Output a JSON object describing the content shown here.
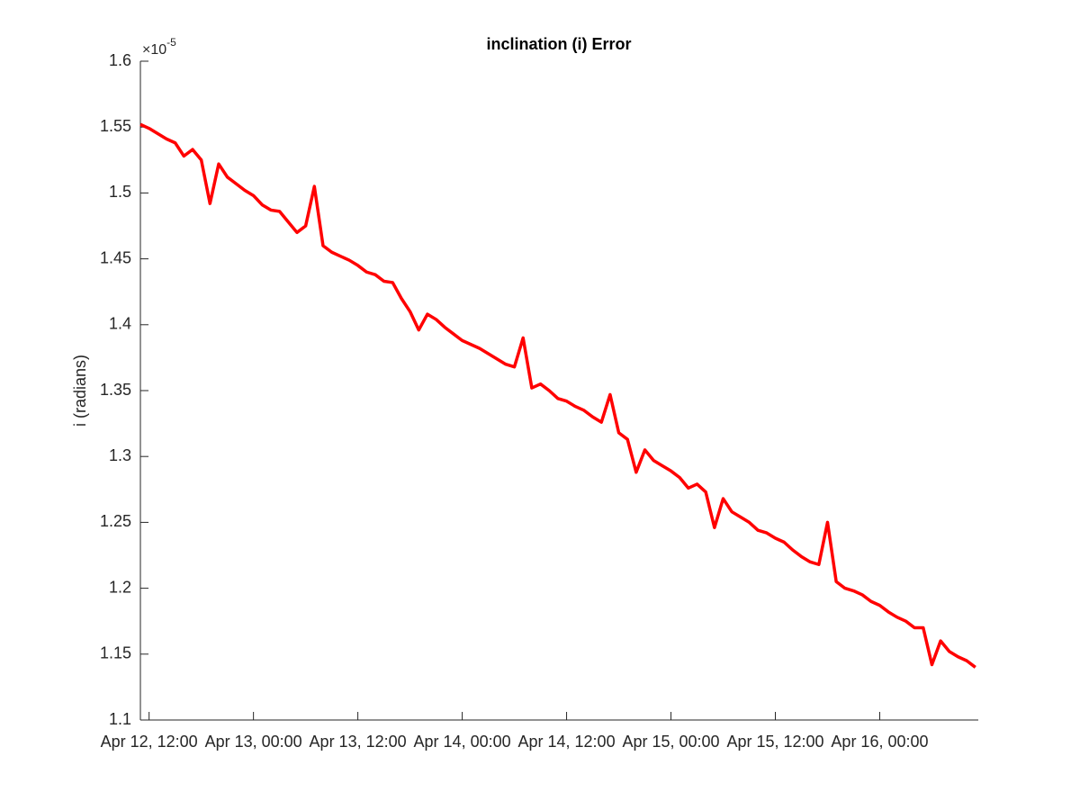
{
  "chart_data": {
    "type": "line",
    "title": "inclination (i) Error",
    "ylabel": "i (radians)",
    "y_exponent": {
      "base": "×10",
      "power": "-5"
    },
    "color": "#ff0000",
    "xlim": [
      "Apr 12, 11:00",
      "Apr 16, 11:20"
    ],
    "xticks": [
      "Apr 12, 12:00",
      "Apr 13, 00:00",
      "Apr 13, 12:00",
      "Apr 14, 00:00",
      "Apr 14, 12:00",
      "Apr 15, 00:00",
      "Apr 15, 12:00",
      "Apr 16, 00:00"
    ],
    "ylim": [
      1.1,
      1.6
    ],
    "yticks": [
      1.1,
      1.15,
      1.2,
      1.25,
      1.3,
      1.35,
      1.4,
      1.45,
      1.5,
      1.55,
      1.6
    ],
    "x": [
      "Apr 12, 11:00",
      "Apr 12, 12:00",
      "Apr 12, 13:00",
      "Apr 12, 14:00",
      "Apr 12, 15:00",
      "Apr 12, 16:00",
      "Apr 12, 17:00",
      "Apr 12, 18:00",
      "Apr 12, 19:00",
      "Apr 12, 20:00",
      "Apr 12, 21:00",
      "Apr 12, 22:00",
      "Apr 12, 23:00",
      "Apr 13, 00:00",
      "Apr 13, 01:00",
      "Apr 13, 02:00",
      "Apr 13, 03:00",
      "Apr 13, 04:00",
      "Apr 13, 05:00",
      "Apr 13, 06:00",
      "Apr 13, 07:00",
      "Apr 13, 08:00",
      "Apr 13, 09:00",
      "Apr 13, 10:00",
      "Apr 13, 11:00",
      "Apr 13, 12:00",
      "Apr 13, 13:00",
      "Apr 13, 14:00",
      "Apr 13, 15:00",
      "Apr 13, 16:00",
      "Apr 13, 17:00",
      "Apr 13, 18:00",
      "Apr 13, 19:00",
      "Apr 13, 20:00",
      "Apr 13, 21:00",
      "Apr 13, 22:00",
      "Apr 13, 23:00",
      "Apr 14, 00:00",
      "Apr 14, 01:00",
      "Apr 14, 02:00",
      "Apr 14, 03:00",
      "Apr 14, 04:00",
      "Apr 14, 05:00",
      "Apr 14, 06:00",
      "Apr 14, 07:00",
      "Apr 14, 08:00",
      "Apr 14, 09:00",
      "Apr 14, 10:00",
      "Apr 14, 11:00",
      "Apr 14, 12:00",
      "Apr 14, 13:00",
      "Apr 14, 14:00",
      "Apr 14, 15:00",
      "Apr 14, 16:00",
      "Apr 14, 17:00",
      "Apr 14, 18:00",
      "Apr 14, 19:00",
      "Apr 14, 20:00",
      "Apr 14, 21:00",
      "Apr 14, 22:00",
      "Apr 14, 23:00",
      "Apr 15, 00:00",
      "Apr 15, 01:00",
      "Apr 15, 02:00",
      "Apr 15, 03:00",
      "Apr 15, 04:00",
      "Apr 15, 05:00",
      "Apr 15, 06:00",
      "Apr 15, 07:00",
      "Apr 15, 08:00",
      "Apr 15, 09:00",
      "Apr 15, 10:00",
      "Apr 15, 11:00",
      "Apr 15, 12:00",
      "Apr 15, 13:00",
      "Apr 15, 14:00",
      "Apr 15, 15:00",
      "Apr 15, 16:00",
      "Apr 15, 17:00",
      "Apr 15, 18:00",
      "Apr 15, 19:00",
      "Apr 15, 20:00",
      "Apr 15, 21:00",
      "Apr 15, 22:00",
      "Apr 15, 23:00",
      "Apr 16, 00:00",
      "Apr 16, 01:00",
      "Apr 16, 02:00",
      "Apr 16, 03:00",
      "Apr 16, 04:00",
      "Apr 16, 05:00",
      "Apr 16, 06:00",
      "Apr 16, 07:00",
      "Apr 16, 08:00",
      "Apr 16, 09:00",
      "Apr 16, 10:00",
      "Apr 16, 11:00"
    ],
    "values": [
      1.552,
      1.549,
      1.545,
      1.541,
      1.538,
      1.528,
      1.533,
      1.525,
      1.492,
      1.522,
      1.512,
      1.507,
      1.502,
      1.498,
      1.491,
      1.487,
      1.486,
      1.478,
      1.47,
      1.475,
      1.505,
      1.46,
      1.455,
      1.452,
      1.449,
      1.445,
      1.44,
      1.438,
      1.433,
      1.432,
      1.42,
      1.41,
      1.396,
      1.408,
      1.404,
      1.398,
      1.393,
      1.388,
      1.385,
      1.382,
      1.378,
      1.374,
      1.37,
      1.368,
      1.39,
      1.352,
      1.355,
      1.35,
      1.344,
      1.342,
      1.338,
      1.335,
      1.33,
      1.326,
      1.347,
      1.318,
      1.313,
      1.288,
      1.305,
      1.297,
      1.293,
      1.289,
      1.284,
      1.276,
      1.279,
      1.273,
      1.246,
      1.268,
      1.258,
      1.254,
      1.25,
      1.244,
      1.242,
      1.238,
      1.235,
      1.229,
      1.224,
      1.22,
      1.218,
      1.25,
      1.205,
      1.2,
      1.198,
      1.195,
      1.19,
      1.187,
      1.182,
      1.178,
      1.175,
      1.17,
      1.17,
      1.142,
      1.16,
      1.152,
      1.148,
      1.145,
      1.14
    ]
  }
}
